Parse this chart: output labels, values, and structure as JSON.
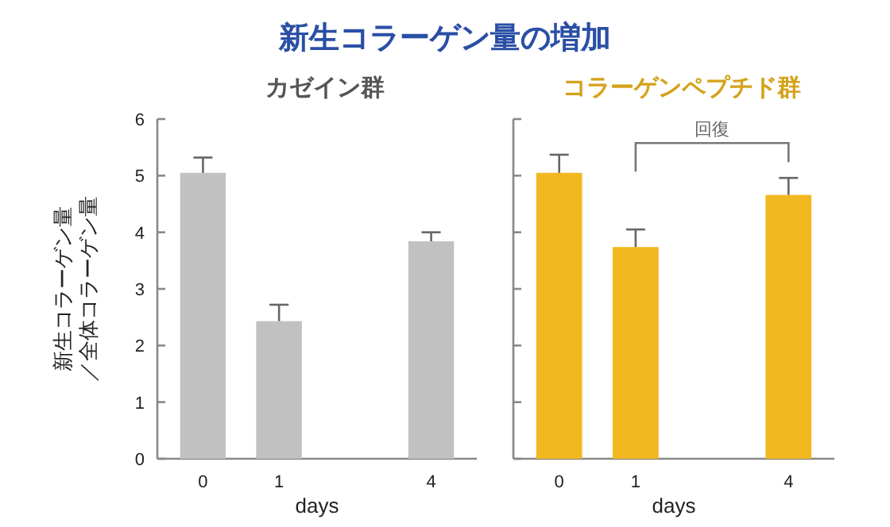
{
  "chart_data": [
    {
      "type": "bar",
      "title": "新生コラーゲン量の増加",
      "subtitle": "カゼイン群",
      "xlabel": "days",
      "ylabel": "新生コラーゲン量／全体コラーゲン量",
      "categories": [
        "0",
        "1",
        null,
        "4"
      ],
      "series": [
        {
          "color": "#c0c1c0",
          "values": [
            5.05,
            2.43,
            null,
            3.84
          ],
          "errors": [
            [
              5.05,
              5.32
            ],
            [
              2.43,
              2.72
            ],
            null,
            [
              3.84,
              4.0
            ]
          ]
        }
      ],
      "ylim": [
        0,
        6
      ],
      "yticks": [
        0,
        1,
        2,
        3,
        4,
        5,
        6
      ],
      "grid": false
    },
    {
      "type": "bar",
      "subtitle": "コラーゲンペプチド群",
      "xlabel": "days",
      "categories": [
        "0",
        "1",
        null,
        "4"
      ],
      "series": [
        {
          "color": "#f2b81f",
          "values": [
            5.05,
            3.74,
            null,
            4.66
          ],
          "errors": [
            [
              5.05,
              5.37
            ],
            [
              3.74,
              4.05
            ],
            null,
            [
              4.66,
              4.96
            ]
          ]
        }
      ],
      "ylim": [
        0,
        6
      ],
      "yticks": [
        {
          "value": 0,
          "label": null
        },
        {
          "value": 1,
          "label": null
        },
        {
          "value": 2,
          "label": null
        },
        {
          "value": 3,
          "label": null
        },
        {
          "value": 4,
          "label": null
        },
        {
          "value": 5,
          "label": null
        },
        {
          "value": 6,
          "label": null
        }
      ],
      "tick_labels": "x",
      "grid": false,
      "annotations": [
        "回復"
      ]
    }
  ]
}
